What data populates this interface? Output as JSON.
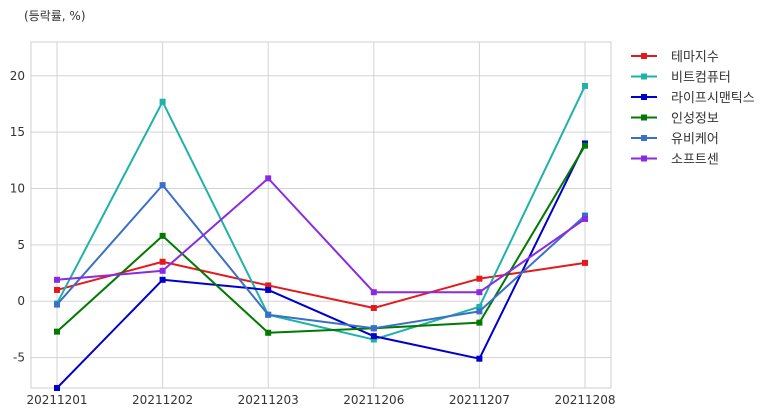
{
  "chart_data": {
    "type": "line",
    "unit_label": "(등락률, %)",
    "x": [
      "20211201",
      "20211202",
      "20211203",
      "20211206",
      "20211207",
      "20211208"
    ],
    "ylim": [
      -7.7,
      23
    ],
    "yticks": [
      -5,
      0,
      5,
      10,
      15,
      20
    ],
    "grid": true,
    "legend_position": "right",
    "series": [
      {
        "name": "테마지수",
        "color": "#e31a1c",
        "values": [
          1.0,
          3.5,
          1.4,
          -0.6,
          2.0,
          3.4
        ]
      },
      {
        "name": "비트컴퓨터",
        "color": "#20b2aa",
        "values": [
          -0.2,
          17.7,
          -1.2,
          -3.4,
          -0.5,
          19.1
        ]
      },
      {
        "name": "라이프시맨틱스",
        "color": "#0000cd",
        "values": [
          -7.7,
          1.9,
          1.0,
          -3.1,
          -5.1,
          14.0
        ]
      },
      {
        "name": "인성정보",
        "color": "#007a00",
        "values": [
          -2.7,
          5.8,
          -2.8,
          -2.4,
          -1.9,
          13.8
        ]
      },
      {
        "name": "유비케어",
        "color": "#3a70c8",
        "values": [
          -0.3,
          10.3,
          -1.2,
          -2.4,
          -0.9,
          7.6
        ]
      },
      {
        "name": "소프트센",
        "color": "#8a2be2",
        "values": [
          1.9,
          2.7,
          10.9,
          0.8,
          0.8,
          7.3
        ]
      }
    ]
  }
}
